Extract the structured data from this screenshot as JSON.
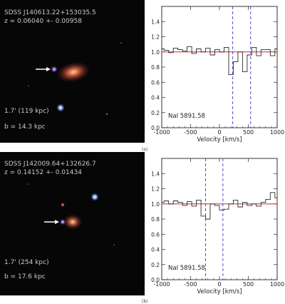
{
  "colors": {
    "spectrum": "#2a2a2a",
    "continuum": "#cc2a2a",
    "marker": "#3636c8",
    "sky": "#060606",
    "annotation": "#c9c9c9"
  },
  "chart_data": [
    {
      "type": "line",
      "panel_label": "(a)",
      "image": {
        "object_name": "SDSS J140613.22+153035.5",
        "redshift_text": "z = 0.06040 +- 0.00958",
        "separation_text": "1.7' (119 kpc)",
        "impact_text": "b = 14.3 kpc",
        "arrow_icon": "white-arrow-icon"
      },
      "annotation": "NaI 5891.58",
      "xlabel": "Velocity [km/s]",
      "ylabel": "",
      "xlim": [
        -1000,
        1000
      ],
      "ylim": [
        0.0,
        1.6
      ],
      "x_ticks": [
        -1000,
        -500,
        0,
        500,
        1000
      ],
      "y_ticks": [
        0.0,
        0.2,
        0.4,
        0.6,
        0.8,
        1.0,
        1.2,
        1.4
      ],
      "grid": false,
      "continuum_level": 1.0,
      "markers": [
        230,
        540
      ],
      "series": [
        {
          "style": "steps",
          "x": [
            -1000,
            -920,
            -840,
            -760,
            -680,
            -600,
            -520,
            -440,
            -360,
            -280,
            -200,
            -120,
            -40,
            40,
            120,
            200,
            280,
            360,
            440,
            520,
            600,
            680,
            760,
            840,
            920,
            1000
          ],
          "y": [
            1.04,
            1.02,
            0.99,
            1.05,
            1.03,
            1.01,
            1.07,
            0.98,
            1.04,
            1.0,
            1.05,
            0.96,
            1.03,
            1.0,
            1.06,
            0.7,
            0.87,
            1.0,
            0.74,
            0.96,
            1.06,
            0.95,
            1.03,
            1.03,
            0.95,
            1.04
          ]
        }
      ]
    },
    {
      "type": "line",
      "panel_label": "(b)",
      "image": {
        "object_name": "SDSS J142009.64+132626.7",
        "redshift_text": "z = 0.14152 +- 0.01434",
        "separation_text": "1.7' (254 kpc)",
        "impact_text": "b = 17.6 kpc",
        "arrow_icon": "white-arrow-icon"
      },
      "annotation": "NaI 5891.58",
      "xlabel": "Velocity [km/s]",
      "ylabel": "",
      "xlim": [
        -1000,
        1000
      ],
      "ylim": [
        0.0,
        1.6
      ],
      "x_ticks": [
        -1000,
        -500,
        0,
        500,
        1000
      ],
      "y_ticks": [
        0.0,
        0.2,
        0.4,
        0.6,
        0.8,
        1.0,
        1.2,
        1.4
      ],
      "grid": false,
      "continuum_level": 1.0,
      "markers": [
        -240,
        60
      ],
      "series": [
        {
          "style": "steps",
          "x": [
            -1000,
            -920,
            -840,
            -760,
            -680,
            -600,
            -520,
            -440,
            -360,
            -280,
            -200,
            -120,
            -40,
            40,
            120,
            200,
            280,
            360,
            440,
            520,
            600,
            680,
            760,
            840,
            920,
            1000
          ],
          "y": [
            1.02,
            1.04,
            1.0,
            1.04,
            1.02,
            0.98,
            1.03,
            0.97,
            1.05,
            0.84,
            0.8,
            1.0,
            0.98,
            0.92,
            0.93,
            1.0,
            1.05,
            0.96,
            1.02,
            0.98,
            1.0,
            0.97,
            1.02,
            1.06,
            1.15,
            1.08
          ]
        }
      ]
    }
  ]
}
